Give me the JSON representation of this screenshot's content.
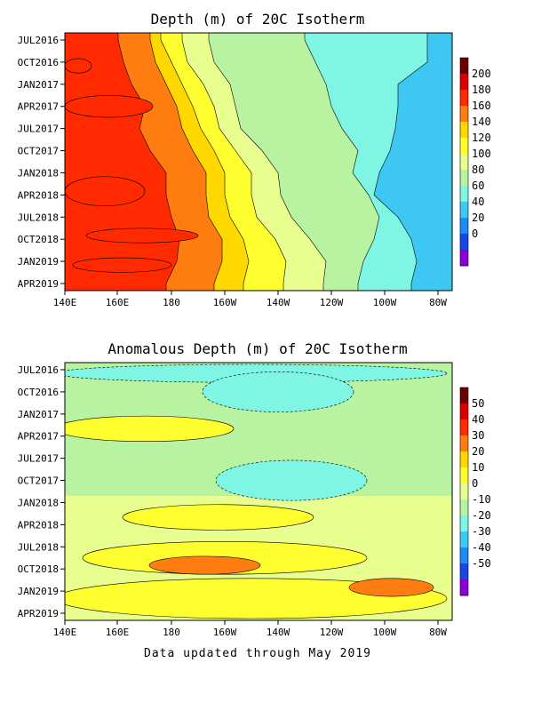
{
  "chart_data": [
    {
      "type": "heatmap",
      "title": "Depth (m) of 20C Isotherm",
      "x_ticks": [
        "140E",
        "160E",
        "180",
        "160W",
        "140W",
        "120W",
        "100W",
        "80W"
      ],
      "y_ticks": [
        "JUL2016",
        "OCT2016",
        "JAN2017",
        "APR2017",
        "JUL2017",
        "OCT2017",
        "JAN2018",
        "APR2018",
        "JUL2018",
        "OCT2018",
        "JAN2019",
        "APR2019"
      ],
      "colorbar": {
        "levels": [
          200,
          180,
          160,
          140,
          120,
          100,
          80,
          60,
          40,
          20,
          0
        ],
        "colors": [
          "#6b0000",
          "#d90000",
          "#ff2a00",
          "#ff7d10",
          "#ffd800",
          "#ffff30",
          "#e8ff90",
          "#b8f3a2",
          "#7ff5e3",
          "#3ec7f2",
          "#1e8cf0",
          "#1946e6",
          "#8a00d4"
        ]
      },
      "bands": [
        {
          "level": 180,
          "boundary": [
            null,
            null,
            null,
            null,
            null,
            null,
            null,
            null,
            null,
            null,
            null,
            null
          ]
        },
        {
          "level": 160,
          "boundary": [
            160,
            162,
            165,
            170,
            168,
            172,
            178,
            178,
            180,
            183,
            182,
            178
          ]
        },
        {
          "level": 140,
          "boundary": [
            172,
            174,
            178,
            182,
            184,
            188,
            193,
            193,
            194,
            199,
            199,
            196
          ]
        },
        {
          "level": 120,
          "boundary": [
            176,
            180,
            184,
            188,
            191,
            196,
            200,
            200,
            202,
            207,
            209,
            207
          ]
        },
        {
          "level": 100,
          "boundary": [
            184,
            186,
            192,
            196,
            198,
            204,
            210,
            210,
            212,
            219,
            223,
            222
          ]
        },
        {
          "level": 80,
          "boundary": [
            194,
            196,
            202,
            204,
            206,
            214,
            220,
            221,
            225,
            232,
            238,
            237
          ]
        },
        {
          "level": 60,
          "boundary": [
            230,
            234,
            238,
            240,
            244,
            250,
            248,
            254,
            258,
            256,
            252,
            250
          ]
        },
        {
          "level": 40,
          "boundary": [
            null,
            null,
            265,
            265,
            264,
            262,
            258,
            256,
            265,
            270,
            272,
            270
          ]
        }
      ]
    },
    {
      "type": "heatmap",
      "title": "Anomalous Depth (m) of 20C Isotherm",
      "x_ticks": [
        "140E",
        "160E",
        "180",
        "160W",
        "140W",
        "120W",
        "100W",
        "80W"
      ],
      "y_ticks": [
        "JUL2016",
        "OCT2016",
        "JAN2017",
        "APR2017",
        "JUL2017",
        "OCT2017",
        "JAN2018",
        "APR2018",
        "JUL2018",
        "OCT2018",
        "JAN2019",
        "APR2019"
      ],
      "colorbar": {
        "levels": [
          50,
          40,
          30,
          20,
          10,
          0,
          -10,
          -20,
          -30,
          -40,
          -50
        ],
        "colors": [
          "#6b0000",
          "#d90000",
          "#ff2a00",
          "#ff7d10",
          "#ffd800",
          "#ffff30",
          "#e8ff90",
          "#b8f3a2",
          "#7ff5e3",
          "#3ec7f2",
          "#1e8cf0",
          "#1946e6",
          "#8a00d4"
        ]
      },
      "regions": [
        {
          "value": -20,
          "time_range": [
            "JUL2016",
            "AUG2016"
          ],
          "lon_range": [
            "140E",
            "80W"
          ]
        },
        {
          "value": -20,
          "time_range": [
            "AUG2016",
            "DEC2016"
          ],
          "lon_range": [
            "165W",
            "115W"
          ]
        },
        {
          "value": -20,
          "time_range": [
            "AUG2017",
            "DEC2017"
          ],
          "lon_range": [
            "160W",
            "110W"
          ]
        },
        {
          "value": 10,
          "time_range": [
            "FEB2017",
            "APR2017"
          ],
          "lon_range": [
            "140E",
            "160W"
          ]
        },
        {
          "value": 10,
          "time_range": [
            "FEB2018",
            "APR2018"
          ],
          "lon_range": [
            "165E",
            "130W"
          ]
        },
        {
          "value": 10,
          "time_range": [
            "JUL2018",
            "OCT2018"
          ],
          "lon_range": [
            "150E",
            "110W"
          ]
        },
        {
          "value": 10,
          "time_range": [
            "DEC2018",
            "APR2019"
          ],
          "lon_range": [
            "140E",
            "80W"
          ]
        },
        {
          "value": 30,
          "time_range": [
            "SEP2018",
            "OCT2018"
          ],
          "lon_range": [
            "175E",
            "150W"
          ]
        },
        {
          "value": 30,
          "time_range": [
            "DEC2018",
            "JAN2019"
          ],
          "lon_range": [
            "110W",
            "85W"
          ]
        }
      ]
    }
  ],
  "footer": "Data updated through May 2019"
}
